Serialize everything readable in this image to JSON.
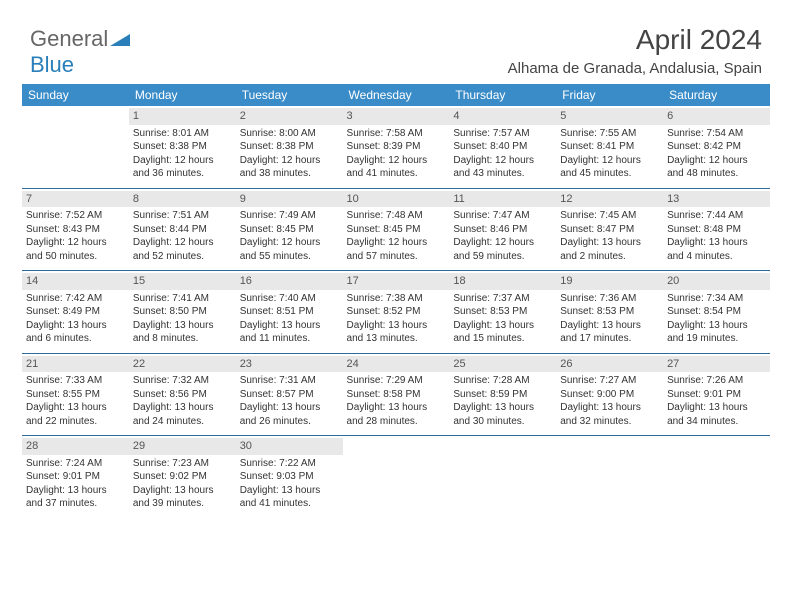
{
  "brand": {
    "part1": "General",
    "part2": "Blue"
  },
  "title": "April 2024",
  "location": "Alhama de Granada, Andalusia, Spain",
  "colors": {
    "header_bg": "#3a8cc9",
    "header_text": "#ffffff",
    "daynum_bg": "#e8e8e8",
    "rule": "#2f6a9e",
    "brand_blue": "#2a7fba"
  },
  "weekdays": [
    "Sunday",
    "Monday",
    "Tuesday",
    "Wednesday",
    "Thursday",
    "Friday",
    "Saturday"
  ],
  "weeks": [
    [
      {
        "n": "",
        "lines": []
      },
      {
        "n": "1",
        "lines": [
          "Sunrise: 8:01 AM",
          "Sunset: 8:38 PM",
          "Daylight: 12 hours",
          "and 36 minutes."
        ]
      },
      {
        "n": "2",
        "lines": [
          "Sunrise: 8:00 AM",
          "Sunset: 8:38 PM",
          "Daylight: 12 hours",
          "and 38 minutes."
        ]
      },
      {
        "n": "3",
        "lines": [
          "Sunrise: 7:58 AM",
          "Sunset: 8:39 PM",
          "Daylight: 12 hours",
          "and 41 minutes."
        ]
      },
      {
        "n": "4",
        "lines": [
          "Sunrise: 7:57 AM",
          "Sunset: 8:40 PM",
          "Daylight: 12 hours",
          "and 43 minutes."
        ]
      },
      {
        "n": "5",
        "lines": [
          "Sunrise: 7:55 AM",
          "Sunset: 8:41 PM",
          "Daylight: 12 hours",
          "and 45 minutes."
        ]
      },
      {
        "n": "6",
        "lines": [
          "Sunrise: 7:54 AM",
          "Sunset: 8:42 PM",
          "Daylight: 12 hours",
          "and 48 minutes."
        ]
      }
    ],
    [
      {
        "n": "7",
        "lines": [
          "Sunrise: 7:52 AM",
          "Sunset: 8:43 PM",
          "Daylight: 12 hours",
          "and 50 minutes."
        ]
      },
      {
        "n": "8",
        "lines": [
          "Sunrise: 7:51 AM",
          "Sunset: 8:44 PM",
          "Daylight: 12 hours",
          "and 52 minutes."
        ]
      },
      {
        "n": "9",
        "lines": [
          "Sunrise: 7:49 AM",
          "Sunset: 8:45 PM",
          "Daylight: 12 hours",
          "and 55 minutes."
        ]
      },
      {
        "n": "10",
        "lines": [
          "Sunrise: 7:48 AM",
          "Sunset: 8:45 PM",
          "Daylight: 12 hours",
          "and 57 minutes."
        ]
      },
      {
        "n": "11",
        "lines": [
          "Sunrise: 7:47 AM",
          "Sunset: 8:46 PM",
          "Daylight: 12 hours",
          "and 59 minutes."
        ]
      },
      {
        "n": "12",
        "lines": [
          "Sunrise: 7:45 AM",
          "Sunset: 8:47 PM",
          "Daylight: 13 hours",
          "and 2 minutes."
        ]
      },
      {
        "n": "13",
        "lines": [
          "Sunrise: 7:44 AM",
          "Sunset: 8:48 PM",
          "Daylight: 13 hours",
          "and 4 minutes."
        ]
      }
    ],
    [
      {
        "n": "14",
        "lines": [
          "Sunrise: 7:42 AM",
          "Sunset: 8:49 PM",
          "Daylight: 13 hours",
          "and 6 minutes."
        ]
      },
      {
        "n": "15",
        "lines": [
          "Sunrise: 7:41 AM",
          "Sunset: 8:50 PM",
          "Daylight: 13 hours",
          "and 8 minutes."
        ]
      },
      {
        "n": "16",
        "lines": [
          "Sunrise: 7:40 AM",
          "Sunset: 8:51 PM",
          "Daylight: 13 hours",
          "and 11 minutes."
        ]
      },
      {
        "n": "17",
        "lines": [
          "Sunrise: 7:38 AM",
          "Sunset: 8:52 PM",
          "Daylight: 13 hours",
          "and 13 minutes."
        ]
      },
      {
        "n": "18",
        "lines": [
          "Sunrise: 7:37 AM",
          "Sunset: 8:53 PM",
          "Daylight: 13 hours",
          "and 15 minutes."
        ]
      },
      {
        "n": "19",
        "lines": [
          "Sunrise: 7:36 AM",
          "Sunset: 8:53 PM",
          "Daylight: 13 hours",
          "and 17 minutes."
        ]
      },
      {
        "n": "20",
        "lines": [
          "Sunrise: 7:34 AM",
          "Sunset: 8:54 PM",
          "Daylight: 13 hours",
          "and 19 minutes."
        ]
      }
    ],
    [
      {
        "n": "21",
        "lines": [
          "Sunrise: 7:33 AM",
          "Sunset: 8:55 PM",
          "Daylight: 13 hours",
          "and 22 minutes."
        ]
      },
      {
        "n": "22",
        "lines": [
          "Sunrise: 7:32 AM",
          "Sunset: 8:56 PM",
          "Daylight: 13 hours",
          "and 24 minutes."
        ]
      },
      {
        "n": "23",
        "lines": [
          "Sunrise: 7:31 AM",
          "Sunset: 8:57 PM",
          "Daylight: 13 hours",
          "and 26 minutes."
        ]
      },
      {
        "n": "24",
        "lines": [
          "Sunrise: 7:29 AM",
          "Sunset: 8:58 PM",
          "Daylight: 13 hours",
          "and 28 minutes."
        ]
      },
      {
        "n": "25",
        "lines": [
          "Sunrise: 7:28 AM",
          "Sunset: 8:59 PM",
          "Daylight: 13 hours",
          "and 30 minutes."
        ]
      },
      {
        "n": "26",
        "lines": [
          "Sunrise: 7:27 AM",
          "Sunset: 9:00 PM",
          "Daylight: 13 hours",
          "and 32 minutes."
        ]
      },
      {
        "n": "27",
        "lines": [
          "Sunrise: 7:26 AM",
          "Sunset: 9:01 PM",
          "Daylight: 13 hours",
          "and 34 minutes."
        ]
      }
    ],
    [
      {
        "n": "28",
        "lines": [
          "Sunrise: 7:24 AM",
          "Sunset: 9:01 PM",
          "Daylight: 13 hours",
          "and 37 minutes."
        ]
      },
      {
        "n": "29",
        "lines": [
          "Sunrise: 7:23 AM",
          "Sunset: 9:02 PM",
          "Daylight: 13 hours",
          "and 39 minutes."
        ]
      },
      {
        "n": "30",
        "lines": [
          "Sunrise: 7:22 AM",
          "Sunset: 9:03 PM",
          "Daylight: 13 hours",
          "and 41 minutes."
        ]
      },
      {
        "n": "",
        "lines": []
      },
      {
        "n": "",
        "lines": []
      },
      {
        "n": "",
        "lines": []
      },
      {
        "n": "",
        "lines": []
      }
    ]
  ]
}
